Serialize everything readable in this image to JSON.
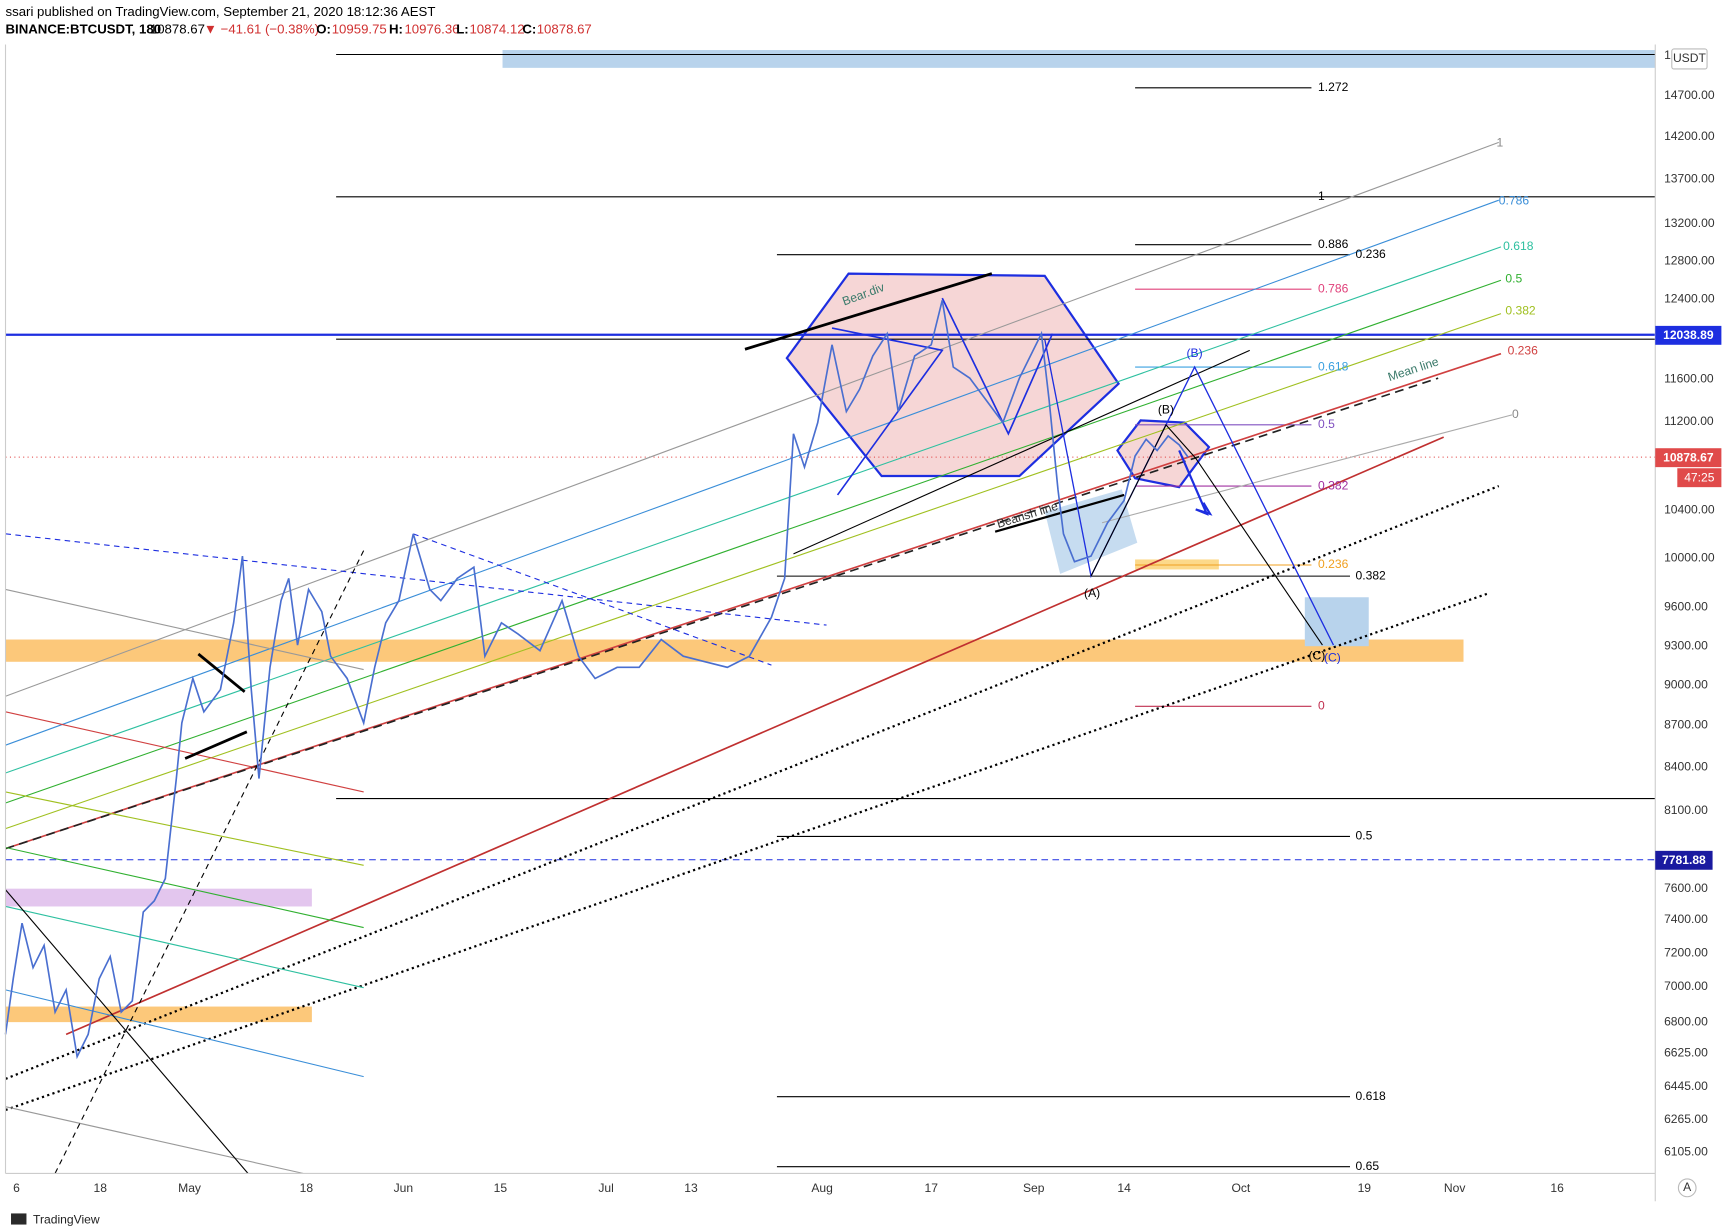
{
  "header": {
    "publisher": "ssari published on TradingView.com, September 21, 2020 18:12:36 AEST",
    "symbol": "BINANCE:BTCUSDT, 180",
    "last": "10878.67",
    "change": "▼ −41.61 (−0.38%)",
    "o_label": "O:",
    "o": "10959.75",
    "h_label": "H:",
    "h": "10976.36",
    "l_label": "L:",
    "l": "10874.12",
    "c_label": "C:",
    "c": "10878.67"
  },
  "price_axis": {
    "currency": "USDT",
    "top": "1",
    "labels": [
      "14700.00",
      "14200.00",
      "13700.00",
      "13200.00",
      "12800.00",
      "12400.00",
      "11600.00",
      "11200.00",
      "10400.00",
      "10000.00",
      "9600.00",
      "9300.00",
      "9000.00",
      "8700.00",
      "8400.00",
      "8100.00",
      "7600.00",
      "7400.00",
      "7200.00",
      "7000.00",
      "6800.00",
      "6625.00",
      "6445.00",
      "6265.00",
      "6105.00"
    ],
    "badges": [
      "12038.89",
      "10878.67",
      "47:25",
      "7781.88"
    ]
  },
  "time_axis": {
    "labels": [
      "6",
      "18",
      "May",
      "18",
      "Jun",
      "15",
      "Jul",
      "13",
      "Aug",
      "17",
      "Sep",
      "14",
      "Oct",
      "19",
      "Nov",
      "16"
    ],
    "auto": "A"
  },
  "fib_labels": [
    "1.272",
    "1",
    "0.886",
    "0.236",
    "0.786",
    "0.618",
    "0.5",
    "0.382",
    "0.382",
    "0.236",
    "0",
    "0.5",
    "0.618",
    "0.65"
  ],
  "pitchfork_labels": [
    "1",
    "0.786",
    "0.618",
    "0.5",
    "0.382",
    "0.236",
    "0"
  ],
  "annotations": {
    "bear_div": "Bear.div",
    "mean_line": "Mean line",
    "bearish_line": "Bearish line",
    "b1": "(B)",
    "b2": "(B)",
    "a": "(A)",
    "c1": "(C)",
    "c2": "(C)"
  },
  "footer": "TradingView"
}
